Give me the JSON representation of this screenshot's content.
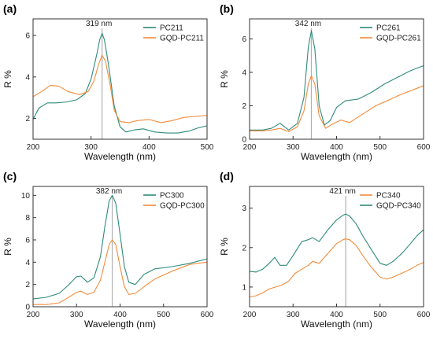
{
  "colors": {
    "series_a": "#2e8b7a",
    "series_b": "#f28c3c",
    "marker": "#b0b0b0"
  },
  "chart_data": [
    {
      "panel": "(a)",
      "type": "line",
      "xlabel": "Wavelength (nm)",
      "ylabel": "R %",
      "xlim": [
        200,
        500
      ],
      "ylim": [
        1.0,
        6.8
      ],
      "xticks": [
        200,
        300,
        400,
        500
      ],
      "yticks": [
        2,
        4,
        6
      ],
      "annotation": "319 nm",
      "marker_x": 319,
      "legend_position": "top-right",
      "series": [
        {
          "name": "PC211",
          "color": "#2e8b7a",
          "x": [
            200,
            210,
            225,
            240,
            260,
            275,
            290,
            300,
            310,
            315,
            319,
            323,
            330,
            340,
            350,
            360,
            375,
            390,
            410,
            430,
            450,
            470,
            485,
            500
          ],
          "y": [
            1.95,
            2.5,
            2.75,
            2.75,
            2.8,
            2.9,
            3.2,
            3.9,
            5.1,
            5.8,
            6.1,
            5.8,
            4.6,
            2.6,
            1.6,
            1.35,
            1.45,
            1.5,
            1.35,
            1.3,
            1.3,
            1.4,
            1.55,
            1.65
          ]
        },
        {
          "name": "GQD-PC211",
          "color": "#f28c3c",
          "x": [
            200,
            215,
            230,
            245,
            260,
            280,
            295,
            305,
            313,
            319,
            325,
            333,
            340,
            350,
            365,
            380,
            400,
            420,
            440,
            460,
            480,
            500
          ],
          "y": [
            3.05,
            3.3,
            3.6,
            3.55,
            3.3,
            3.15,
            3.3,
            3.8,
            4.6,
            5.05,
            4.75,
            3.6,
            2.4,
            1.85,
            1.8,
            1.9,
            1.95,
            1.8,
            1.9,
            2.05,
            2.1,
            2.15
          ]
        }
      ]
    },
    {
      "panel": "(b)",
      "type": "line",
      "xlabel": "Wavelength (nm)",
      "ylabel": "R %",
      "xlim": [
        200,
        600
      ],
      "ylim": [
        0,
        7.2
      ],
      "xticks": [
        200,
        300,
        400,
        500,
        600
      ],
      "yticks": [
        0,
        2,
        4,
        6
      ],
      "annotation": "342 nm",
      "marker_x": 342,
      "legend_position": "top-right",
      "series": [
        {
          "name": "PC261",
          "color": "#2e8b7a",
          "x": [
            200,
            230,
            250,
            270,
            290,
            310,
            325,
            335,
            342,
            350,
            360,
            372,
            385,
            400,
            420,
            450,
            480,
            510,
            540,
            570,
            600
          ],
          "y": [
            0.55,
            0.55,
            0.65,
            0.95,
            0.55,
            0.95,
            2.5,
            5.5,
            6.5,
            5.4,
            2.0,
            0.85,
            1.1,
            1.9,
            2.3,
            2.4,
            2.8,
            3.3,
            3.7,
            4.1,
            4.4
          ]
        },
        {
          "name": "GQD-PC261",
          "color": "#f28c3c",
          "x": [
            200,
            230,
            250,
            270,
            290,
            310,
            325,
            335,
            342,
            350,
            360,
            375,
            390,
            410,
            430,
            460,
            490,
            520,
            550,
            580,
            600
          ],
          "y": [
            0.5,
            0.5,
            0.55,
            0.65,
            0.45,
            0.75,
            1.7,
            3.3,
            3.8,
            3.3,
            1.4,
            0.65,
            0.9,
            1.15,
            1.0,
            1.5,
            2.0,
            2.35,
            2.7,
            3.0,
            3.2
          ]
        }
      ]
    },
    {
      "panel": "(c)",
      "type": "line",
      "xlabel": "Wavelength (nm)",
      "ylabel": "R %",
      "xlim": [
        200,
        600
      ],
      "ylim": [
        0,
        10.8
      ],
      "xticks": [
        200,
        300,
        400,
        500,
        600
      ],
      "yticks": [
        0,
        2,
        4,
        6,
        8,
        10
      ],
      "annotation": "382 nm",
      "marker_x": 382,
      "legend_position": "top-right",
      "series": [
        {
          "name": "PC300",
          "color": "#2e8b7a",
          "x": [
            200,
            230,
            260,
            280,
            300,
            310,
            325,
            340,
            355,
            365,
            375,
            382,
            390,
            400,
            410,
            420,
            435,
            455,
            480,
            520,
            560,
            600
          ],
          "y": [
            0.7,
            0.85,
            1.2,
            1.9,
            2.7,
            2.75,
            2.2,
            2.6,
            4.5,
            7.2,
            9.5,
            10.0,
            9.3,
            6.5,
            3.6,
            2.2,
            2.0,
            2.9,
            3.4,
            3.6,
            3.9,
            4.3
          ]
        },
        {
          "name": "GQD-PC300",
          "color": "#f28c3c",
          "x": [
            200,
            230,
            260,
            280,
            300,
            310,
            325,
            340,
            355,
            365,
            375,
            382,
            390,
            400,
            410,
            420,
            435,
            455,
            480,
            520,
            560,
            600
          ],
          "y": [
            0.2,
            0.2,
            0.35,
            0.8,
            1.3,
            1.4,
            1.1,
            1.3,
            2.4,
            4.0,
            5.6,
            6.0,
            5.6,
            3.6,
            1.8,
            1.1,
            1.2,
            1.8,
            2.5,
            3.2,
            3.8,
            4.0
          ]
        }
      ]
    },
    {
      "panel": "(d)",
      "type": "line",
      "xlabel": "Wavelength (nm)",
      "ylabel": "R %",
      "xlim": [
        200,
        600
      ],
      "ylim": [
        0.5,
        3.55
      ],
      "xticks": [
        200,
        300,
        400,
        500,
        600
      ],
      "yticks": [
        1,
        2,
        3
      ],
      "annotation": "421 nm",
      "marker_x": 421,
      "legend_position": "top-right",
      "series": [
        {
          "name": "PC340",
          "color": "#f28c3c",
          "x": [
            200,
            215,
            230,
            245,
            260,
            275,
            290,
            305,
            320,
            335,
            345,
            360,
            380,
            400,
            415,
            421,
            430,
            445,
            460,
            480,
            500,
            515,
            530,
            550,
            570,
            585,
            600
          ],
          "y": [
            0.75,
            0.78,
            0.85,
            0.95,
            1.0,
            1.05,
            1.15,
            1.35,
            1.45,
            1.55,
            1.65,
            1.6,
            1.85,
            2.1,
            2.2,
            2.22,
            2.2,
            2.05,
            1.8,
            1.5,
            1.25,
            1.2,
            1.25,
            1.35,
            1.45,
            1.55,
            1.62
          ]
        },
        {
          "name": "GQD-PC340",
          "color": "#2e8b7a",
          "x": [
            200,
            215,
            230,
            245,
            258,
            270,
            285,
            300,
            320,
            335,
            345,
            360,
            380,
            400,
            415,
            421,
            430,
            445,
            460,
            480,
            500,
            515,
            530,
            550,
            570,
            585,
            600
          ],
          "y": [
            1.4,
            1.38,
            1.45,
            1.6,
            1.75,
            1.55,
            1.55,
            1.8,
            2.15,
            2.2,
            2.25,
            2.15,
            2.45,
            2.7,
            2.82,
            2.85,
            2.8,
            2.6,
            2.3,
            1.95,
            1.6,
            1.55,
            1.65,
            1.85,
            2.1,
            2.3,
            2.45
          ]
        }
      ]
    }
  ]
}
